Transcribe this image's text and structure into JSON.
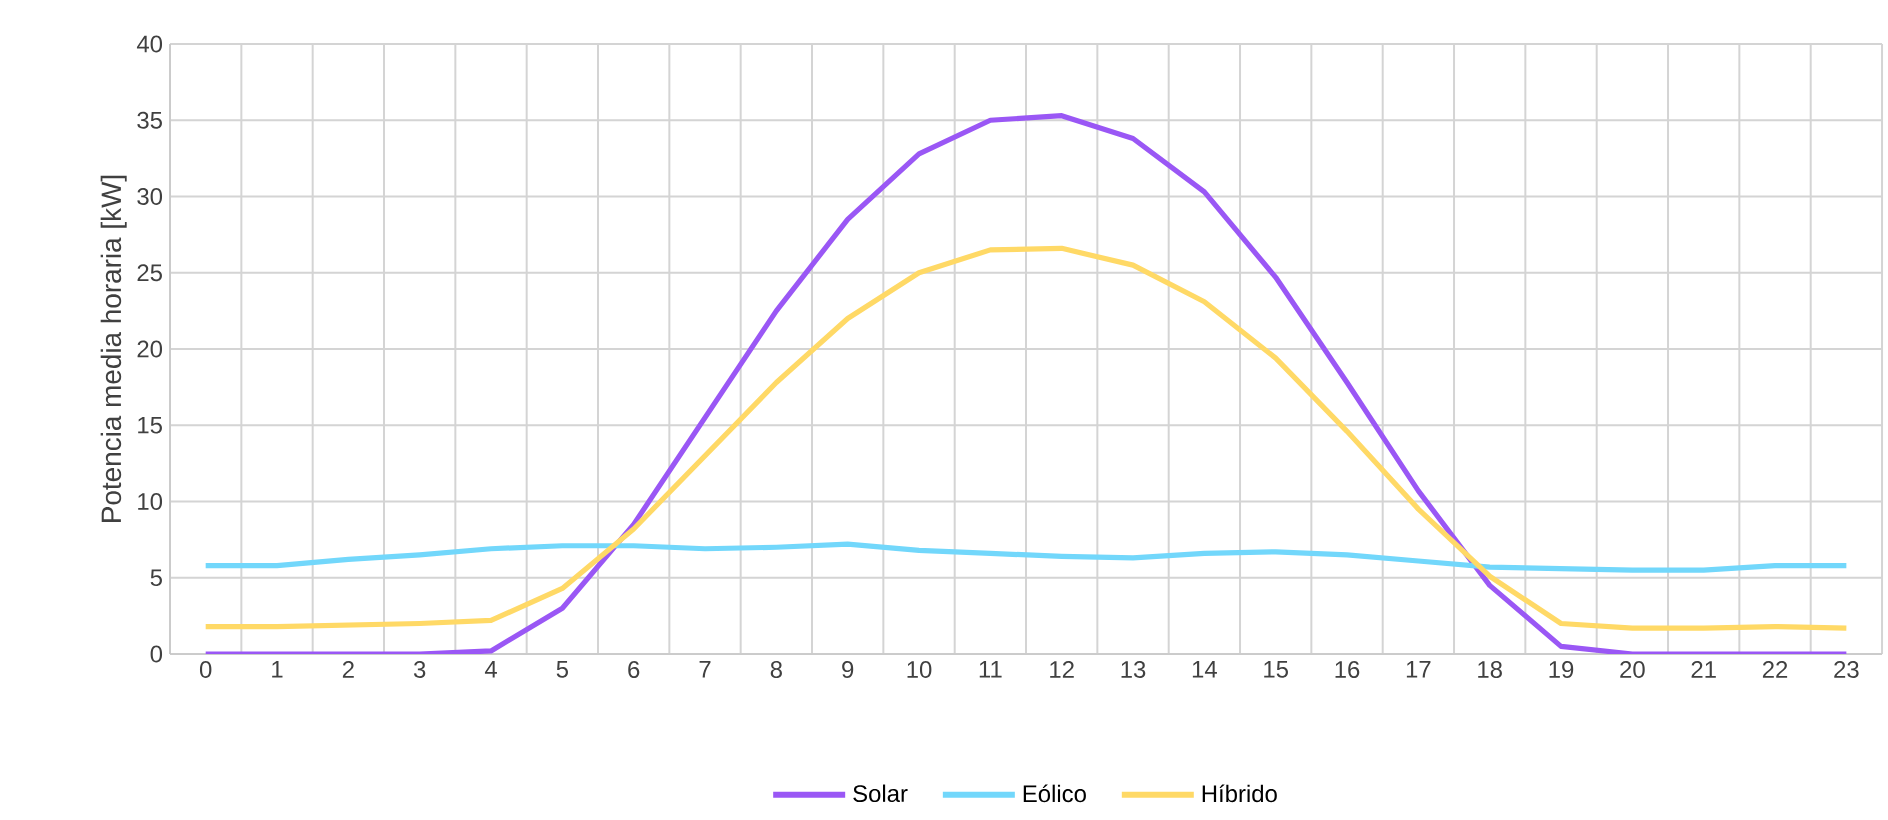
{
  "chart_data": {
    "type": "line",
    "ylabel": "Potencia media horaria [kW]",
    "categories": [
      "0",
      "1",
      "2",
      "3",
      "4",
      "5",
      "6",
      "7",
      "8",
      "9",
      "10",
      "11",
      "12",
      "13",
      "14",
      "15",
      "16",
      "17",
      "18",
      "19",
      "20",
      "21",
      "22",
      "23"
    ],
    "ylim": [
      0,
      40
    ],
    "yticks": [
      0,
      5,
      10,
      15,
      20,
      25,
      30,
      35,
      40
    ],
    "grid": true,
    "legend": "bottom",
    "marker": "none",
    "line_style": "solid",
    "series": [
      {
        "name": "Solar",
        "color": "#9a57f5",
        "values": [
          0,
          0,
          0,
          0,
          0.2,
          3,
          8.5,
          15.5,
          22.5,
          28.5,
          32.8,
          35,
          35.3,
          33.8,
          30.3,
          24.7,
          17.8,
          10.7,
          4.5,
          0.5,
          0,
          0,
          0,
          0
        ]
      },
      {
        "name": "Eólico",
        "color": "#72d7fb",
        "values": [
          5.8,
          5.8,
          6.2,
          6.5,
          6.9,
          7.1,
          7.1,
          6.9,
          7.0,
          7.2,
          6.8,
          6.6,
          6.4,
          6.3,
          6.6,
          6.7,
          6.5,
          6.1,
          5.7,
          5.6,
          5.5,
          5.5,
          5.8,
          5.8
        ]
      },
      {
        "name": "Híbrido",
        "color": "#ffd966",
        "values": [
          1.8,
          1.8,
          1.9,
          2.0,
          2.2,
          4.3,
          8.2,
          13,
          17.8,
          22,
          25,
          26.5,
          26.6,
          25.5,
          23.1,
          19.4,
          14.6,
          9.5,
          5.1,
          2.0,
          1.7,
          1.7,
          1.8,
          1.7
        ]
      }
    ]
  }
}
